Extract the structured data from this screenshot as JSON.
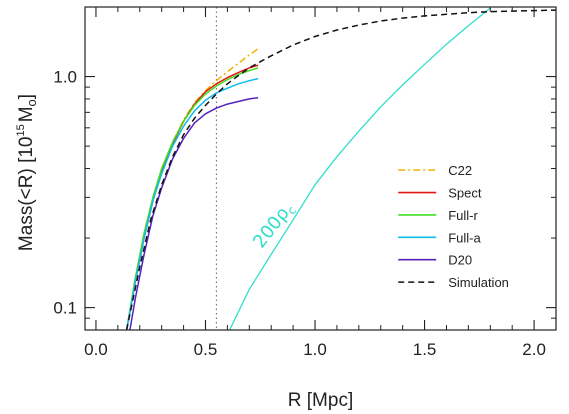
{
  "chart_data": {
    "type": "line",
    "xlabel": "R [Mpc]",
    "ylabel": {
      "main": "Mass(<R) [10",
      "exp": "15",
      "unit": "M",
      "sub": "o",
      "close": "]"
    },
    "xlim": [
      -0.05,
      2.1
    ],
    "ylim": [
      0.08,
      2.0
    ],
    "yscale": "log",
    "xticks": [
      {
        "value": 0.0,
        "label": "0.0"
      },
      {
        "value": 0.5,
        "label": "0.5"
      },
      {
        "value": 1.0,
        "label": "1.0"
      },
      {
        "value": 1.5,
        "label": "1.5"
      },
      {
        "value": 2.0,
        "label": "2.0"
      }
    ],
    "yticks": [
      {
        "value": 0.1,
        "label": "0.1"
      },
      {
        "value": 1.0,
        "label": "1.0"
      }
    ],
    "vline": {
      "x": 0.55,
      "color": "#777777",
      "style": "dotted"
    },
    "legend_position": "lower-right",
    "series": [
      {
        "name": "C22",
        "color": "#f0b400",
        "dash": "dashdot",
        "x": [
          0.14,
          0.18,
          0.22,
          0.26,
          0.3,
          0.35,
          0.4,
          0.45,
          0.5,
          0.55,
          0.6,
          0.65,
          0.7,
          0.74
        ],
        "y": [
          0.08,
          0.135,
          0.21,
          0.3,
          0.4,
          0.52,
          0.65,
          0.77,
          0.87,
          0.96,
          1.05,
          1.14,
          1.24,
          1.32
        ]
      },
      {
        "name": "Spect",
        "color": "#e01818",
        "dash": "solid",
        "x": [
          0.14,
          0.18,
          0.22,
          0.26,
          0.3,
          0.35,
          0.4,
          0.45,
          0.5,
          0.55,
          0.6,
          0.65,
          0.7,
          0.74
        ],
        "y": [
          0.08,
          0.13,
          0.2,
          0.29,
          0.39,
          0.51,
          0.64,
          0.76,
          0.86,
          0.93,
          0.99,
          1.04,
          1.09,
          1.12
        ]
      },
      {
        "name": "Full-r",
        "color": "#44dd22",
        "dash": "solid",
        "x": [
          0.14,
          0.18,
          0.22,
          0.26,
          0.3,
          0.35,
          0.4,
          0.45,
          0.5,
          0.55,
          0.6,
          0.65,
          0.7,
          0.74
        ],
        "y": [
          0.08,
          0.135,
          0.21,
          0.3,
          0.4,
          0.52,
          0.64,
          0.75,
          0.84,
          0.91,
          0.97,
          1.02,
          1.06,
          1.09
        ]
      },
      {
        "name": "Full-a",
        "color": "#11bbee",
        "dash": "solid",
        "x": [
          0.14,
          0.18,
          0.22,
          0.26,
          0.3,
          0.35,
          0.4,
          0.45,
          0.5,
          0.55,
          0.6,
          0.65,
          0.7,
          0.74
        ],
        "y": [
          0.08,
          0.13,
          0.2,
          0.29,
          0.38,
          0.5,
          0.61,
          0.71,
          0.79,
          0.85,
          0.89,
          0.93,
          0.96,
          0.98
        ]
      },
      {
        "name": "D20",
        "color": "#5522bb",
        "dash": "solid",
        "x": [
          0.155,
          0.18,
          0.22,
          0.26,
          0.3,
          0.35,
          0.4,
          0.45,
          0.5,
          0.55,
          0.6,
          0.65,
          0.7,
          0.74
        ],
        "y": [
          0.08,
          0.11,
          0.17,
          0.25,
          0.33,
          0.44,
          0.54,
          0.63,
          0.69,
          0.73,
          0.76,
          0.78,
          0.8,
          0.81
        ]
      },
      {
        "name": "Simulation",
        "color": "#111111",
        "dash": "dashed",
        "x": [
          0.14,
          0.2,
          0.25,
          0.3,
          0.35,
          0.4,
          0.45,
          0.5,
          0.55,
          0.6,
          0.65,
          0.7,
          0.75,
          0.8,
          0.9,
          1.0,
          1.1,
          1.2,
          1.3,
          1.4,
          1.5,
          1.6,
          1.7,
          1.8,
          1.9,
          2.0,
          2.1
        ],
        "y": [
          0.08,
          0.15,
          0.24,
          0.34,
          0.45,
          0.56,
          0.66,
          0.75,
          0.84,
          0.93,
          1.01,
          1.09,
          1.16,
          1.23,
          1.37,
          1.49,
          1.59,
          1.67,
          1.74,
          1.79,
          1.83,
          1.86,
          1.89,
          1.91,
          1.92,
          1.93,
          1.94
        ]
      }
    ],
    "reference_curve": {
      "color": "#33ddcc",
      "label": "200ρ",
      "label_sub": "c",
      "label_at": {
        "x": 0.83,
        "y": 0.22
      },
      "label_angle": -52,
      "x": [
        0.61,
        0.7,
        0.8,
        0.9,
        1.0,
        1.1,
        1.2,
        1.3,
        1.4,
        1.5,
        1.6,
        1.7,
        1.8
      ],
      "y": [
        0.08,
        0.12,
        0.17,
        0.24,
        0.34,
        0.45,
        0.58,
        0.74,
        0.92,
        1.13,
        1.38,
        1.66,
        1.98
      ]
    }
  }
}
